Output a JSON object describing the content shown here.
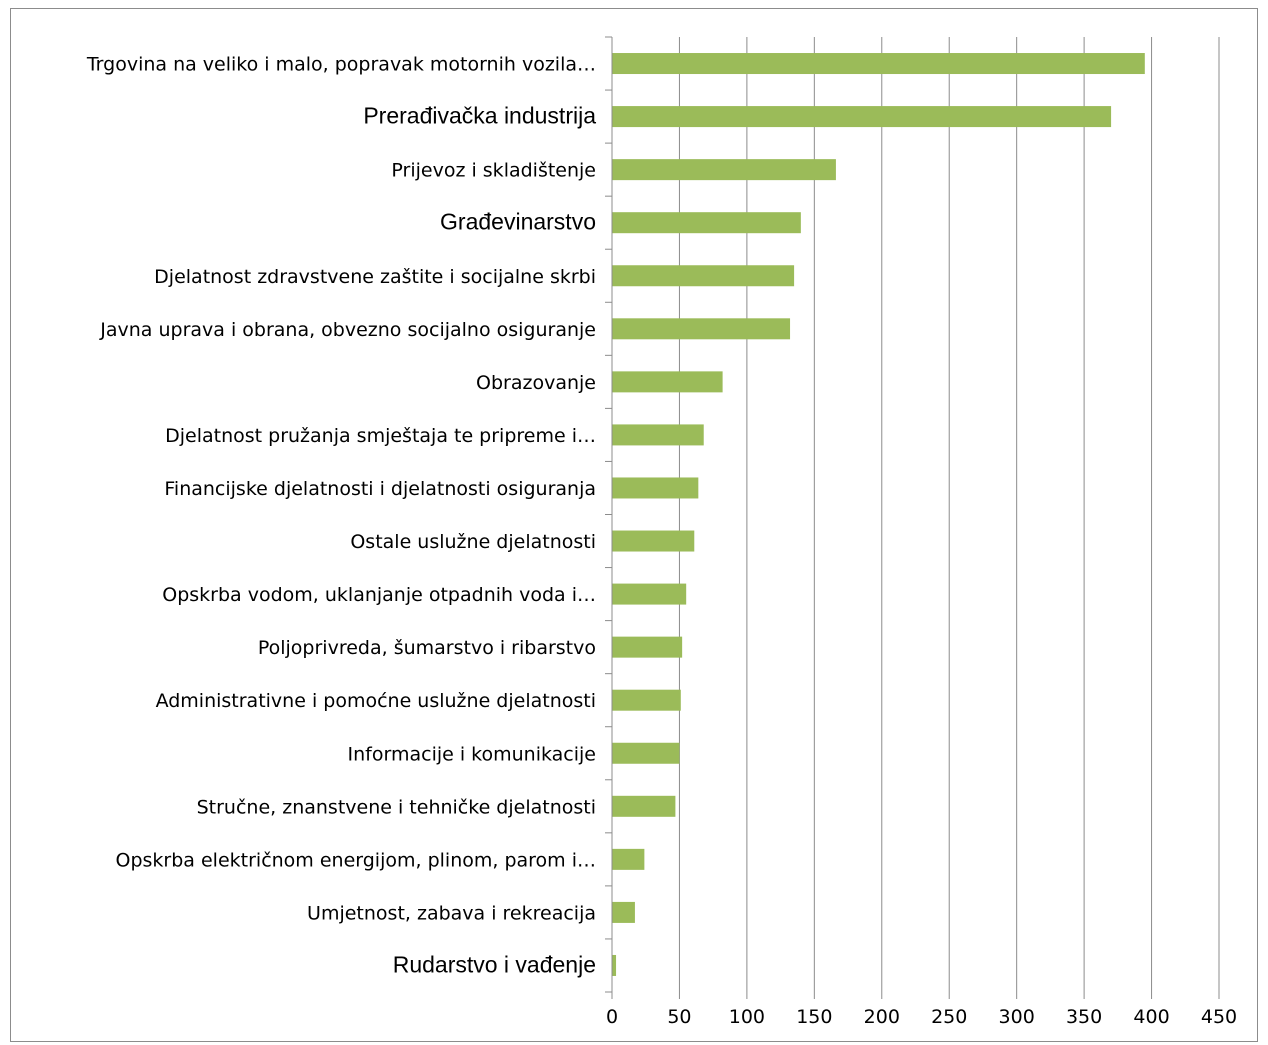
{
  "chart_data": {
    "type": "bar",
    "orientation": "horizontal",
    "title": "",
    "xlabel": "",
    "ylabel": "",
    "xlim": [
      0,
      450
    ],
    "xticks": [
      "0",
      "50",
      "100",
      "150",
      "200",
      "250",
      "300",
      "350",
      "400",
      "450"
    ],
    "grid": "vertical",
    "legend": "none",
    "bar_color": "#9bbb59",
    "categories": [
      "Trgovina na veliko i malo, popravak motornih vozila…",
      "Prerađivačka industrija",
      "Prijevoz i skladištenje",
      "Građevinarstvo",
      "Djelatnost zdravstvene zaštite i socijalne skrbi",
      "Javna uprava i obrana, obvezno socijalno osiguranje",
      "Obrazovanje",
      "Djelatnost pružanja smještaja te pripreme i…",
      "Financijske djelatnosti i djelatnosti osiguranja",
      "Ostale uslužne djelatnosti",
      "Opskrba vodom, uklanjanje otpadnih voda i…",
      "Poljoprivreda, šumarstvo i ribarstvo",
      "Administrativne i pomoćne uslužne djelatnosti",
      "Informacije i komunikacije",
      "Stručne, znanstvene i tehničke djelatnosti",
      "Opskrba električnom energijom, plinom, parom i…",
      "Umjetnost, zabava i rekreacija",
      "Rudarstvo i vađenje"
    ],
    "values": [
      395,
      370,
      166,
      140,
      135,
      132,
      82,
      68,
      64,
      61,
      55,
      52,
      51,
      50,
      47,
      24,
      17,
      3
    ],
    "large_label_indices": [
      1,
      3,
      17
    ]
  }
}
